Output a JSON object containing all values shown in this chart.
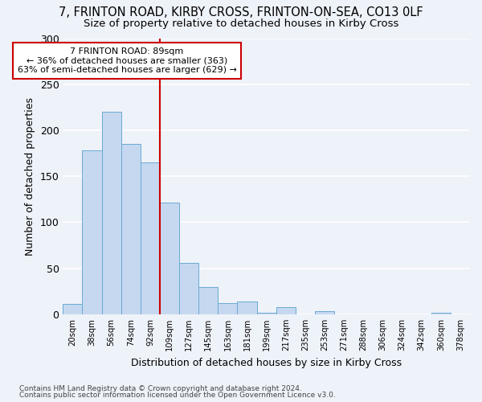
{
  "title_line1": "7, FRINTON ROAD, KIRBY CROSS, FRINTON-ON-SEA, CO13 0LF",
  "title_line2": "Size of property relative to detached houses in Kirby Cross",
  "xlabel": "Distribution of detached houses by size in Kirby Cross",
  "ylabel": "Number of detached properties",
  "categories": [
    "20sqm",
    "38sqm",
    "56sqm",
    "74sqm",
    "92sqm",
    "109sqm",
    "127sqm",
    "145sqm",
    "163sqm",
    "181sqm",
    "199sqm",
    "217sqm",
    "235sqm",
    "253sqm",
    "271sqm",
    "288sqm",
    "306sqm",
    "324sqm",
    "342sqm",
    "360sqm",
    "378sqm"
  ],
  "values": [
    11,
    178,
    220,
    185,
    165,
    121,
    56,
    30,
    12,
    14,
    2,
    8,
    0,
    3,
    0,
    0,
    0,
    0,
    0,
    2,
    0
  ],
  "bar_color": "#c5d8f0",
  "bar_edge_color": "#6aaad4",
  "vline_color": "#cc0000",
  "annotation_text": "7 FRINTON ROAD: 89sqm\n← 36% of detached houses are smaller (363)\n63% of semi-detached houses are larger (629) →",
  "annotation_box_color": "white",
  "annotation_box_edge_color": "#cc0000",
  "ylim": [
    0,
    300
  ],
  "yticks": [
    0,
    50,
    100,
    150,
    200,
    250,
    300
  ],
  "background_color": "#eef2f9",
  "grid_color": "white",
  "footer_line1": "Contains HM Land Registry data © Crown copyright and database right 2024.",
  "footer_line2": "Contains public sector information licensed under the Open Government Licence v3.0.",
  "vline_bin_index": 4,
  "title1_fontsize": 10.5,
  "title2_fontsize": 9.5
}
